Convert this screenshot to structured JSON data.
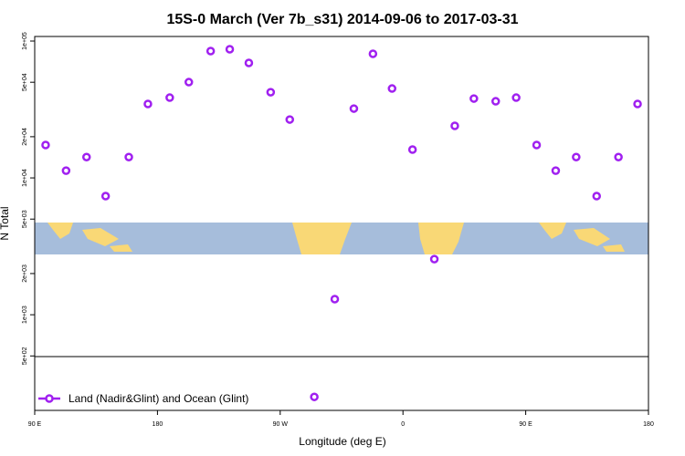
{
  "chart_data": {
    "type": "scatter",
    "title": "15S-0 March (Ver 7b_s31)   2014-09-06 to 2017-03-31",
    "x_label": "Longitude (deg E)",
    "y_label": "N Total",
    "log_y": true,
    "legend": "bottom-left",
    "series": [
      {
        "name": "Land (Nadir&Glint) and Ocean (Glint)",
        "color": "#a020f0",
        "x": [
          98,
          113,
          128,
          142,
          159,
          173,
          189,
          203,
          219,
          233,
          247,
          263,
          277,
          295,
          310,
          324,
          338,
          352,
          367,
          383,
          398,
          412,
          428,
          443,
          458,
          472,
          487,
          502,
          518,
          532
        ],
        "values": [
          17400,
          11300,
          14200,
          7360,
          14200,
          34700,
          38600,
          50100,
          84500,
          87100,
          69200,
          42300,
          26700,
          251,
          1300,
          32100,
          80700,
          45000,
          16100,
          2550,
          24000,
          38000,
          36300,
          38600,
          17400,
          11300,
          14200,
          7360,
          14200,
          34700
        ]
      }
    ],
    "xlim": [
      90,
      540
    ],
    "xticks": [
      {
        "value": 90,
        "label": "90 E"
      },
      {
        "value": 180,
        "label": "180"
      },
      {
        "value": 270,
        "label": "90 W"
      },
      {
        "value": 360,
        "label": "0"
      },
      {
        "value": 450,
        "label": "90 E"
      },
      {
        "value": 540,
        "label": "180"
      }
    ],
    "ylim": [
      200,
      108000
    ],
    "yticks": [
      {
        "value": 100000,
        "label": "1e+05"
      },
      {
        "value": 50000,
        "label": "5e+04"
      },
      {
        "value": 20000,
        "label": "2e+04"
      },
      {
        "value": 10000,
        "label": "1e+04"
      },
      {
        "value": 5000,
        "label": "5e+03"
      },
      {
        "value": 2000,
        "label": "2e+03"
      },
      {
        "value": 1000,
        "label": "1e+03"
      },
      {
        "value": 500,
        "label": "5e+02"
      }
    ]
  }
}
